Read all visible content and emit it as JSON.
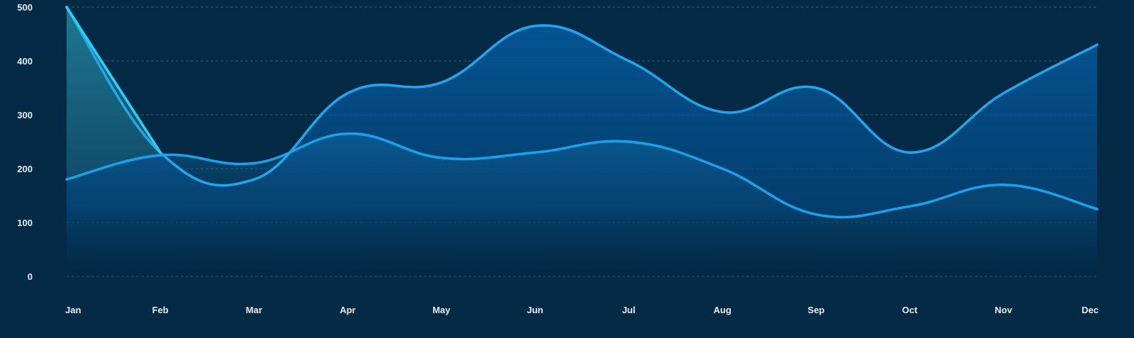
{
  "chart_data": {
    "type": "area",
    "title": "",
    "xlabel": "",
    "ylabel": "",
    "categories": [
      "Jan",
      "Feb",
      "Mar",
      "Apr",
      "May",
      "Jun",
      "Jul",
      "Aug",
      "Sep",
      "Oct",
      "Nov",
      "Dec"
    ],
    "ylim": [
      0,
      500
    ],
    "yticks": [
      0,
      100,
      200,
      300,
      400,
      500
    ],
    "grid": true,
    "legend": "none",
    "series": [
      {
        "values": [
          500,
          230,
          180,
          340,
          360,
          465,
          400,
          305,
          350,
          230,
          340,
          430
        ],
        "color": "#1fa8f0",
        "fill": "#03599b"
      },
      {
        "values": [
          180,
          225,
          210,
          265,
          220,
          230,
          250,
          200,
          115,
          130,
          170,
          125
        ],
        "color": "#19a3ec",
        "fill": "#0b5a93"
      }
    ],
    "highlight": {
      "color": "#27d3f5",
      "fill": "#1a6b85"
    },
    "background": "#042a45"
  }
}
